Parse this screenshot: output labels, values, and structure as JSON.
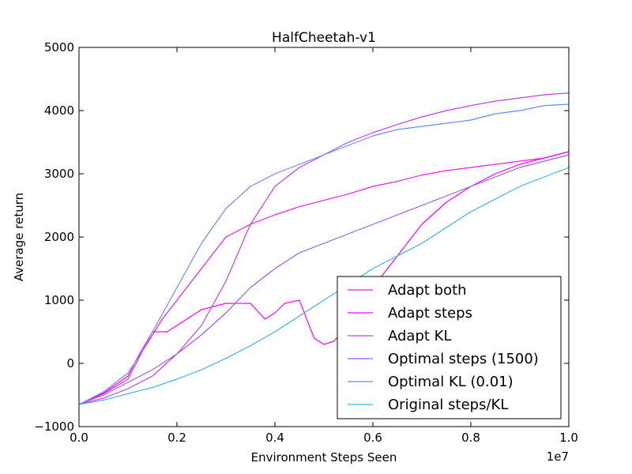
{
  "chart_data": {
    "type": "line",
    "title": "HalfCheetah-v1",
    "xlabel": "Environment Steps Seen",
    "ylabel": "Average return",
    "x_exponent_label": "1e7",
    "xlim": [
      0,
      1.0
    ],
    "ylim": [
      -1000,
      5000
    ],
    "x_ticks": [
      0.0,
      0.2,
      0.4,
      0.6,
      0.8,
      1.0
    ],
    "x_tick_labels": [
      "0.0",
      "0.2",
      "0.4",
      "0.6",
      "0.8",
      "1.0"
    ],
    "y_ticks": [
      -1000,
      0,
      1000,
      2000,
      3000,
      4000,
      5000
    ],
    "y_tick_labels": [
      "−1000",
      "0",
      "1000",
      "2000",
      "3000",
      "4000",
      "5000"
    ],
    "grid": false,
    "legend_position": "lower-right",
    "series": [
      {
        "name": "Adapt both",
        "color": "#e61ee6",
        "x": [
          0.0,
          0.05,
          0.1,
          0.13,
          0.17,
          0.2,
          0.25,
          0.3,
          0.35,
          0.4,
          0.45,
          0.5,
          0.55,
          0.6,
          0.65,
          0.7,
          0.75,
          0.8,
          0.85,
          0.9,
          0.95,
          1.0
        ],
        "y": [
          -650,
          -480,
          -250,
          200,
          700,
          1000,
          1500,
          2000,
          2200,
          2350,
          2480,
          2580,
          2680,
          2800,
          2880,
          2980,
          3050,
          3100,
          3150,
          3200,
          3250,
          3350
        ]
      },
      {
        "name": "Adapt steps",
        "color": "#ff00ff",
        "x": [
          0.0,
          0.05,
          0.1,
          0.12,
          0.15,
          0.18,
          0.2,
          0.25,
          0.3,
          0.35,
          0.38,
          0.4,
          0.42,
          0.45,
          0.48,
          0.5,
          0.52,
          0.55,
          0.58,
          0.6,
          0.65,
          0.7,
          0.75,
          0.8,
          0.85,
          0.9,
          0.95,
          1.0
        ],
        "y": [
          -650,
          -470,
          -200,
          100,
          500,
          500,
          600,
          850,
          950,
          950,
          700,
          800,
          950,
          1000,
          400,
          300,
          350,
          600,
          900,
          1200,
          1700,
          2200,
          2550,
          2800,
          3000,
          3150,
          3250,
          3350
        ]
      },
      {
        "name": "Adapt KL",
        "color": "#c040f0",
        "x": [
          0.0,
          0.05,
          0.1,
          0.15,
          0.2,
          0.25,
          0.3,
          0.35,
          0.4,
          0.45,
          0.5,
          0.55,
          0.6,
          0.65,
          0.7,
          0.75,
          0.8,
          0.85,
          0.9,
          0.95,
          1.0
        ],
        "y": [
          -650,
          -550,
          -400,
          -200,
          150,
          600,
          1300,
          2200,
          2800,
          3100,
          3300,
          3500,
          3650,
          3780,
          3900,
          4000,
          4080,
          4150,
          4200,
          4250,
          4280
        ]
      },
      {
        "name": "Optimal steps (1500)",
        "color": "#9a5cf5",
        "x": [
          0.0,
          0.05,
          0.1,
          0.15,
          0.2,
          0.25,
          0.3,
          0.35,
          0.4,
          0.45,
          0.5,
          0.55,
          0.6,
          0.65,
          0.7,
          0.75,
          0.8,
          0.85,
          0.9,
          0.95,
          1.0
        ],
        "y": [
          -650,
          -500,
          -300,
          -100,
          150,
          450,
          800,
          1200,
          1500,
          1750,
          1900,
          2050,
          2200,
          2350,
          2500,
          2650,
          2800,
          2950,
          3100,
          3200,
          3300
        ]
      },
      {
        "name": "Optimal KL (0.01)",
        "color": "#6d8af5",
        "x": [
          0.0,
          0.05,
          0.1,
          0.13,
          0.15,
          0.2,
          0.25,
          0.3,
          0.35,
          0.4,
          0.45,
          0.5,
          0.55,
          0.6,
          0.65,
          0.7,
          0.75,
          0.8,
          0.85,
          0.9,
          0.95,
          1.0
        ],
        "y": [
          -650,
          -450,
          -150,
          200,
          500,
          1200,
          1900,
          2450,
          2800,
          3000,
          3150,
          3300,
          3450,
          3600,
          3700,
          3750,
          3800,
          3850,
          3950,
          4000,
          4080,
          4100
        ]
      },
      {
        "name": "Original steps/KL",
        "color": "#3fb0ee",
        "x": [
          0.0,
          0.05,
          0.1,
          0.15,
          0.2,
          0.25,
          0.3,
          0.35,
          0.4,
          0.45,
          0.5,
          0.55,
          0.6,
          0.65,
          0.7,
          0.75,
          0.8,
          0.85,
          0.9,
          0.95,
          1.0
        ],
        "y": [
          -650,
          -580,
          -480,
          -380,
          -250,
          -100,
          80,
          280,
          500,
          750,
          1000,
          1250,
          1500,
          1700,
          1900,
          2150,
          2400,
          2600,
          2800,
          2950,
          3100
        ]
      }
    ]
  }
}
